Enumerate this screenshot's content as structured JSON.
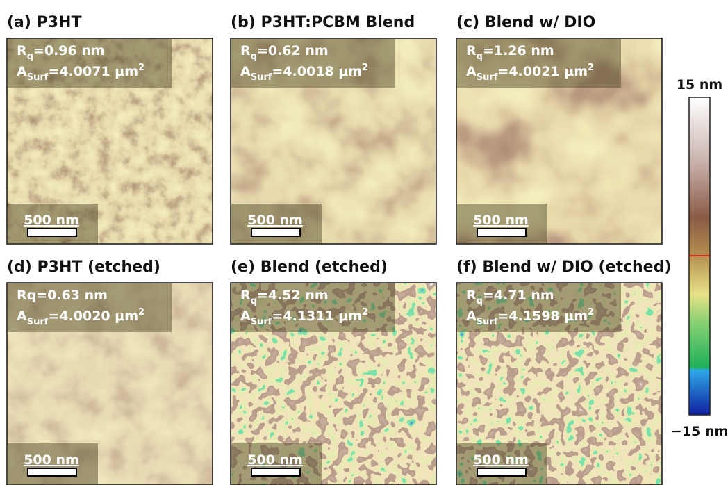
{
  "panels": [
    {
      "title": "(a) P3HT",
      "roughness": {
        "symbol": "R",
        "subscript": "q",
        "value": "=0.96 nm"
      },
      "area": {
        "symbol": "A",
        "subscript": "Surf",
        "value": "=4.0071 μm",
        "superscript": "2"
      },
      "scale_bar": "500 nm"
    },
    {
      "title": "(b) P3HT:PCBM Blend",
      "roughness": {
        "symbol": "R",
        "subscript": "q",
        "value": "=0.62 nm"
      },
      "area": {
        "symbol": "A",
        "subscript": "Surf",
        "value": "=4.0018 μm",
        "superscript": "2"
      },
      "scale_bar": "500 nm"
    },
    {
      "title": "(c) Blend w/ DIO",
      "roughness": {
        "symbol": "R",
        "subscript": "q",
        "value": "=1.26 nm"
      },
      "area": {
        "symbol": "A",
        "subscript": "Surf",
        "value": "=4.0021 μm",
        "superscript": "2"
      },
      "scale_bar": "500 nm"
    },
    {
      "title": "(d) P3HT (etched)",
      "roughness": {
        "text": "Rq=0.63 nm"
      },
      "area": {
        "symbol": "A",
        "subscript": "Surf",
        "value": "=4.0020 μm",
        "superscript": "2"
      },
      "scale_bar": "500 nm"
    },
    {
      "title": "(e) Blend (etched)",
      "roughness": {
        "symbol": "R",
        "subscript": "q",
        "value": "=4.52 nm"
      },
      "area": {
        "symbol": "A",
        "subscript": "Surf",
        "value": "=4.1311 μm",
        "superscript": "2"
      },
      "scale_bar": "500 nm"
    },
    {
      "title": "(f) Blend w/ DIO (etched)",
      "roughness": {
        "symbol": "R",
        "subscript": "q",
        "value": "=4.71 nm"
      },
      "area": {
        "symbol": "A",
        "subscript": "Surf",
        "value": "=4.1598 μm",
        "superscript": "2"
      },
      "scale_bar": "500 nm"
    }
  ],
  "colorbar": {
    "max_label": "15 nm",
    "min_label": "−15 nm"
  }
}
